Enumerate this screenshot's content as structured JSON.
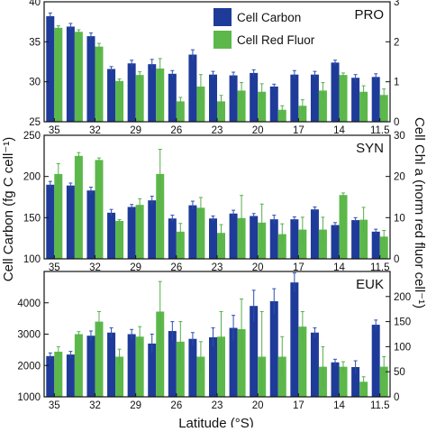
{
  "chart_data": {
    "type": "bar",
    "xlabel": "Latitude (°S)",
    "ylabel_left": "Cell Carbon (fg C cell⁻¹)",
    "ylabel_right": "Cell Chl a (norm red fluor cell⁻¹)",
    "legend": {
      "position": "top-right",
      "entries": [
        "Cell Carbon",
        "Cell Red Fluor"
      ]
    },
    "colors": {
      "carbon": "#1f3b99",
      "fluor": "#5cb84a",
      "carbon_err": "#2d4fb0",
      "fluor_err": "#56b04a"
    },
    "x_tick_labels": [
      "35",
      "32",
      "29",
      "26",
      "23",
      "20",
      "17",
      "14",
      "11.5"
    ],
    "x_tick_indices": [
      0,
      2,
      4,
      6,
      8,
      10,
      12,
      14,
      16
    ],
    "n_stations": 17,
    "panels": [
      {
        "name": "PRO",
        "left_ylim": [
          25,
          40
        ],
        "left_ticks": [
          25,
          30,
          35,
          40
        ],
        "right_ylim": [
          0,
          3
        ],
        "right_ticks": [
          0,
          1,
          2,
          3
        ],
        "carbon": [
          38.2,
          36.9,
          35.7,
          31.6,
          32.3,
          32.2,
          31.0,
          33.4,
          30.9,
          30.8,
          31.1,
          29.4,
          30.9,
          30.9,
          32.4,
          30.5,
          30.6
        ],
        "carbon_err": [
          0.4,
          0.4,
          0.4,
          0.3,
          0.4,
          0.6,
          0.4,
          0.6,
          0.4,
          0.4,
          0.4,
          0.3,
          0.5,
          0.4,
          0.3,
          0.4,
          0.4
        ],
        "fluor": [
          2.35,
          2.25,
          1.88,
          1.02,
          1.17,
          1.33,
          0.51,
          0.88,
          0.51,
          0.78,
          0.75,
          0.3,
          0.4,
          0.78,
          1.17,
          0.75,
          0.67
        ],
        "fluor_err": [
          0.05,
          0.05,
          0.08,
          0.05,
          0.08,
          0.25,
          0.1,
          0.3,
          0.15,
          0.2,
          0.2,
          0.1,
          0.15,
          0.2,
          0.05,
          0.15,
          0.15
        ]
      },
      {
        "name": "SYN",
        "left_ylim": [
          100,
          250
        ],
        "left_ticks": [
          100,
          150,
          200,
          250
        ],
        "right_ylim": [
          0,
          30
        ],
        "right_ticks": [
          0,
          10,
          20,
          30
        ],
        "carbon": [
          190,
          189,
          183,
          156,
          163,
          171,
          149,
          165,
          149,
          155,
          152,
          148,
          148,
          160,
          141,
          147,
          133
        ],
        "carbon_err": [
          4,
          3,
          4,
          4,
          3,
          5,
          4,
          5,
          3,
          4,
          3,
          5,
          3,
          3,
          3,
          3,
          3
        ],
        "fluor": [
          20.6,
          25.0,
          24.0,
          9.2,
          13.1,
          20.6,
          6.6,
          12.4,
          6.3,
          9.9,
          8.8,
          6.0,
          7.1,
          7.1,
          15.5,
          9.5,
          5.4
        ],
        "fluor_err": [
          2.5,
          0.8,
          0.5,
          0.3,
          1.5,
          6.0,
          2.0,
          2.5,
          2.0,
          5.5,
          4.5,
          2.5,
          3.0,
          3.0,
          0.5,
          3.0,
          1.5
        ]
      },
      {
        "name": "EUK",
        "left_ylim": [
          1000,
          5000
        ],
        "left_ticks": [
          1000,
          2000,
          3000,
          4000
        ],
        "right_ylim": [
          0,
          250
        ],
        "right_ticks": [
          0,
          50,
          100,
          150,
          200
        ],
        "carbon": [
          2300,
          2350,
          2950,
          3050,
          3000,
          2700,
          3100,
          2850,
          2900,
          3200,
          3900,
          4050,
          4650,
          3050,
          2100,
          1950,
          3300
        ],
        "carbon_err": [
          100,
          100,
          150,
          150,
          150,
          300,
          300,
          200,
          300,
          400,
          500,
          400,
          300,
          150,
          100,
          200,
          150
        ],
        "fluor": [
          90,
          125,
          150,
          80,
          120,
          170,
          110,
          80,
          120,
          135,
          80,
          80,
          140,
          60,
          60,
          30,
          60
        ],
        "fluor_err": [
          10,
          5,
          20,
          15,
          20,
          60,
          40,
          30,
          50,
          60,
          90,
          40,
          30,
          40,
          10,
          10,
          20
        ]
      }
    ]
  }
}
